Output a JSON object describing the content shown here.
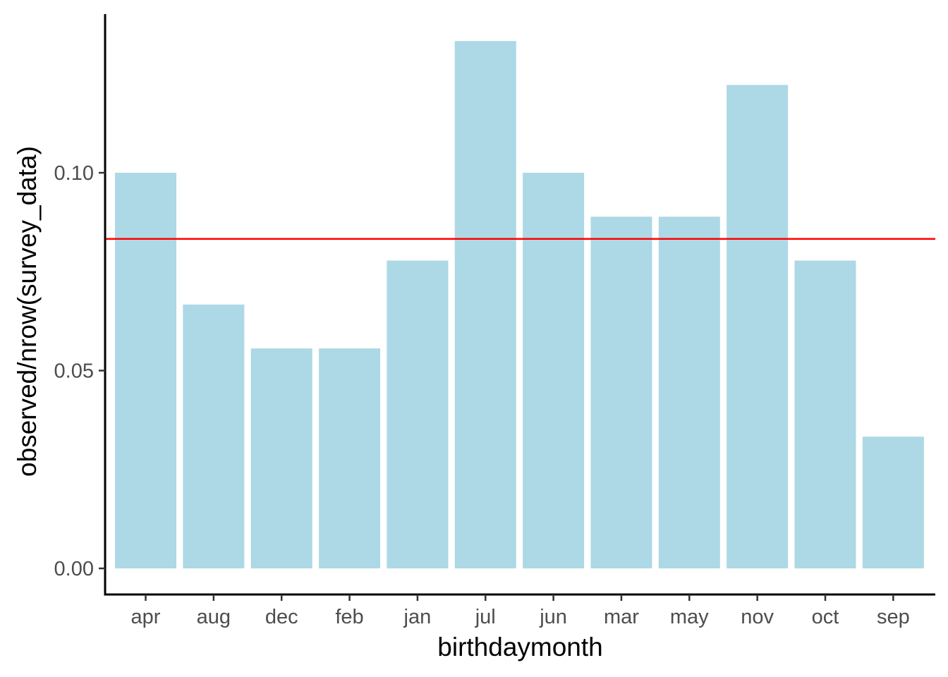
{
  "chart_data": {
    "type": "bar",
    "title": "",
    "xlabel": "birthdaymonth",
    "ylabel": "observed/nrow(survey_data)",
    "categories": [
      "apr",
      "aug",
      "dec",
      "feb",
      "jan",
      "jul",
      "jun",
      "mar",
      "may",
      "nov",
      "oct",
      "sep"
    ],
    "values": [
      0.1,
      0.0667,
      0.0556,
      0.0556,
      0.0778,
      0.1333,
      0.1,
      0.0889,
      0.0889,
      0.1222,
      0.0778,
      0.0333
    ],
    "ylim": [
      -0.0067,
      0.14
    ],
    "yticks": [
      0.0,
      0.05,
      0.1
    ],
    "ytick_labels": [
      "0.00",
      "0.05",
      "0.10"
    ],
    "grid": false,
    "legend": "none",
    "reference_line": {
      "y": 0.0833,
      "color": "#ff0000"
    },
    "bar_color": "#add8e6",
    "axis_color": "#000000"
  }
}
